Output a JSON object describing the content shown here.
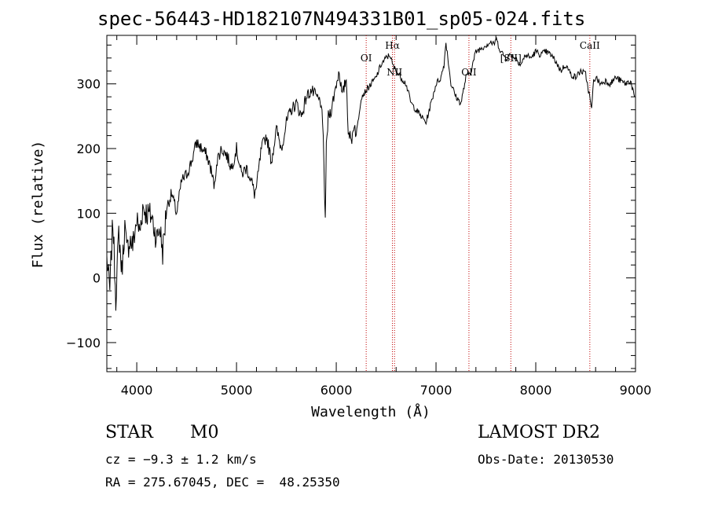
{
  "chart_data": {
    "type": "line",
    "title": "spec-56443-HD182107N494331B01_sp05-024.fits",
    "xlabel": "Wavelength (Å)",
    "ylabel": "Flux (relative)",
    "xlim": [
      3700,
      9000
    ],
    "ylim": [
      -145,
      375
    ],
    "x_ticks": [
      4000,
      5000,
      6000,
      7000,
      8000,
      9000
    ],
    "y_ticks": [
      -100,
      0,
      100,
      200,
      300
    ],
    "x_tick_labels": [
      "4000",
      "5000",
      "6000",
      "7000",
      "8000",
      "9000"
    ],
    "y_tick_labels": [
      "−100",
      "0",
      "100",
      "200",
      "300"
    ],
    "series": [
      {
        "line_color": "#000000",
        "x": [
          3700,
          3730,
          3760,
          3790,
          3820,
          3850,
          3880,
          3900,
          3930,
          3960,
          4000,
          4030,
          4060,
          4100,
          4150,
          4200,
          4230,
          4260,
          4300,
          4350,
          4400,
          4450,
          4500,
          4550,
          4600,
          4650,
          4700,
          4740,
          4780,
          4800,
          4850,
          4900,
          4950,
          5000,
          5050,
          5100,
          5150,
          5180,
          5200,
          5250,
          5300,
          5350,
          5400,
          5450,
          5500,
          5550,
          5600,
          5650,
          5700,
          5750,
          5800,
          5850,
          5870,
          5890,
          5900,
          5920,
          5950,
          6000,
          6030,
          6060,
          6100,
          6120,
          6150,
          6180,
          6200,
          6250,
          6300,
          6350,
          6400,
          6450,
          6500,
          6540,
          6563,
          6580,
          6600,
          6650,
          6700,
          6750,
          6800,
          6850,
          6900,
          6950,
          7000,
          7050,
          7080,
          7100,
          7150,
          7200,
          7250,
          7300,
          7350,
          7400,
          7450,
          7500,
          7550,
          7580,
          7600,
          7650,
          7700,
          7750,
          7800,
          7850,
          7900,
          7950,
          8000,
          8050,
          8100,
          8150,
          8200,
          8250,
          8300,
          8350,
          8400,
          8450,
          8500,
          8540,
          8560,
          8580,
          8600,
          8650,
          8700,
          8750,
          8800,
          8850,
          8900,
          8950,
          8990
        ],
        "y": [
          30,
          -20,
          90,
          -30,
          70,
          10,
          80,
          40,
          60,
          50,
          90,
          70,
          110,
          100,
          95,
          60,
          80,
          40,
          110,
          130,
          100,
          150,
          160,
          180,
          210,
          200,
          190,
          170,
          140,
          180,
          200,
          190,
          170,
          200,
          160,
          170,
          150,
          130,
          140,
          200,
          220,
          180,
          230,
          200,
          240,
          260,
          270,
          250,
          280,
          290,
          280,
          270,
          210,
          90,
          200,
          250,
          260,
          300,
          320,
          280,
          310,
          230,
          210,
          240,
          220,
          280,
          290,
          300,
          310,
          330,
          340,
          345,
          330,
          325,
          320,
          310,
          300,
          270,
          260,
          250,
          240,
          270,
          300,
          310,
          330,
          365,
          300,
          280,
          270,
          310,
          320,
          350,
          355,
          360,
          365,
          360,
          370,
          350,
          340,
          345,
          340,
          330,
          345,
          340,
          350,
          345,
          350,
          345,
          335,
          320,
          330,
          315,
          310,
          320,
          315,
          280,
          260,
          305,
          310,
          300,
          305,
          300,
          310,
          305,
          300,
          305,
          280
        ]
      }
    ],
    "line_labels": [
      {
        "wavelength": 6300,
        "label": "OI"
      },
      {
        "wavelength": 6563,
        "label": "Hα"
      },
      {
        "wavelength": 6584,
        "label": "NII"
      },
      {
        "wavelength": 7330,
        "label": "OII"
      },
      {
        "wavelength": 7750,
        "label": "[SII]"
      },
      {
        "wavelength": 8542,
        "label": "CaII"
      }
    ],
    "line_marker_color": "#c00000",
    "grid": false
  },
  "footer": {
    "object_class": "STAR",
    "subclass": "M0",
    "survey": "LAMOST DR2",
    "cz": "cz = −9.3 ± 1.2 km/s",
    "obs_date": "Obs-Date: 20130530",
    "coords": "RA = 275.67045, DEC =  48.25350"
  }
}
